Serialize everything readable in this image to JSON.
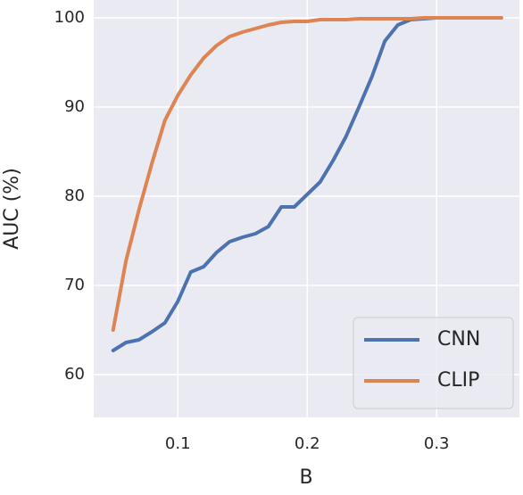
{
  "chart_data": {
    "type": "line",
    "xlabel": "B",
    "ylabel": "AUC (%)",
    "x": [
      0.05,
      0.06,
      0.07,
      0.08,
      0.09,
      0.1,
      0.11,
      0.12,
      0.13,
      0.14,
      0.15,
      0.16,
      0.17,
      0.18,
      0.19,
      0.2,
      0.21,
      0.22,
      0.23,
      0.24,
      0.25,
      0.26,
      0.27,
      0.28,
      0.29,
      0.3,
      0.31,
      0.32,
      0.33,
      0.34,
      0.35
    ],
    "series": [
      {
        "name": "CNN",
        "color": "#4c72b0",
        "values": [
          62.7,
          63.6,
          63.9,
          64.8,
          65.8,
          68.2,
          71.5,
          72.1,
          73.7,
          74.9,
          75.4,
          75.8,
          76.6,
          78.8,
          78.8,
          80.2,
          81.6,
          84.0,
          86.7,
          90.0,
          93.4,
          97.4,
          99.2,
          99.8,
          99.9,
          100.0,
          100.0,
          100.0,
          100.0,
          100.0,
          100.0
        ]
      },
      {
        "name": "CLIP",
        "color": "#dd8452",
        "values": [
          65.0,
          72.8,
          78.5,
          83.7,
          88.5,
          91.3,
          93.6,
          95.5,
          96.9,
          97.9,
          98.4,
          98.8,
          99.2,
          99.5,
          99.6,
          99.6,
          99.8,
          99.8,
          99.8,
          99.9,
          99.9,
          99.9,
          99.9,
          99.9,
          100.0,
          100.0,
          100.0,
          100.0,
          100.0,
          100.0,
          100.0
        ]
      }
    ],
    "xlim": [
      0.035,
      0.364
    ],
    "ylim": [
      55.2,
      102
    ],
    "xticks": [
      0.1,
      0.2,
      0.3
    ],
    "yticks": [
      60,
      70,
      80,
      90,
      100
    ],
    "grid": true,
    "legend": "lower right"
  }
}
